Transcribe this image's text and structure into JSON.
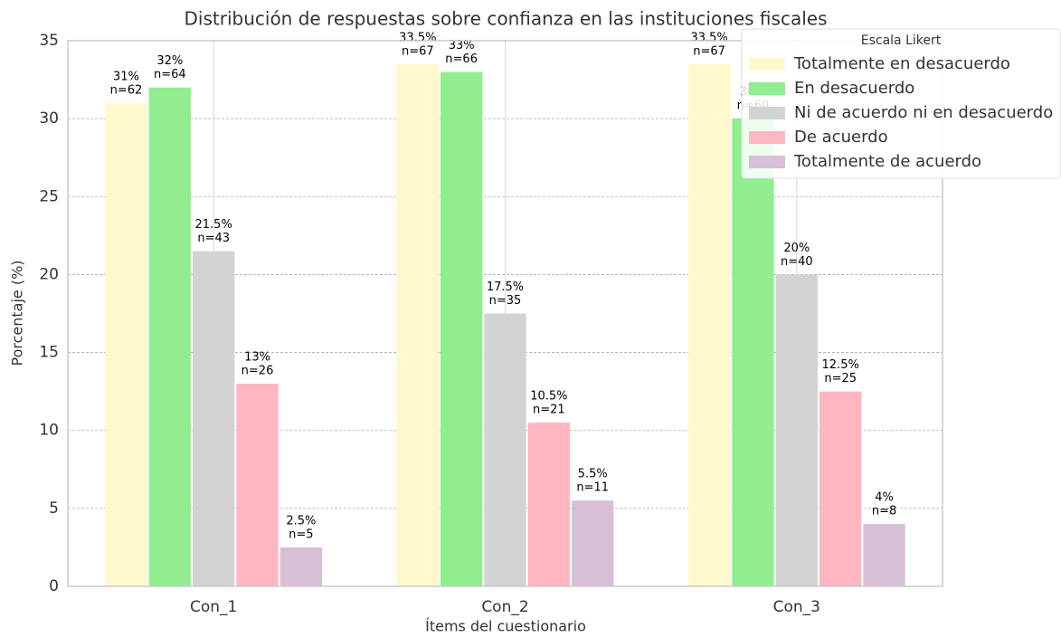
{
  "chart_data": {
    "type": "bar",
    "title": "Distribución de respuestas sobre confianza en las instituciones fiscales",
    "xlabel": "Ítems del cuestionario",
    "ylabel": "Porcentaje (%)",
    "categories": [
      "Con_1",
      "Con_2",
      "Con_3"
    ],
    "ylim": [
      0,
      35
    ],
    "yticks": [
      0,
      5,
      10,
      15,
      20,
      25,
      30,
      35
    ],
    "grid": true,
    "legend": {
      "title": "Escala Likert",
      "position": "upper right"
    },
    "series": [
      {
        "name": "Totalmente en desacuerdo",
        "color": "#fff8cc",
        "values": [
          31,
          33.5,
          33.5
        ],
        "value_labels": [
          "31%",
          "33.5%",
          "33.5%"
        ],
        "count_labels": [
          "n=62",
          "n=67",
          "n=67"
        ]
      },
      {
        "name": "En desacuerdo",
        "color": "#90ee90",
        "values": [
          32,
          33,
          30
        ],
        "value_labels": [
          "32%",
          "33%",
          "30%"
        ],
        "count_labels": [
          "n=64",
          "n=66",
          "n=60"
        ]
      },
      {
        "name": "Ni de acuerdo ni en desacuerdo",
        "color": "#d3d3d3",
        "values": [
          21.5,
          17.5,
          20
        ],
        "value_labels": [
          "21.5%",
          "17.5%",
          "20%"
        ],
        "count_labels": [
          "n=43",
          "n=35",
          "n=40"
        ]
      },
      {
        "name": "De acuerdo",
        "color": "#ffb6c1",
        "values": [
          13,
          10.5,
          12.5
        ],
        "value_labels": [
          "13%",
          "10.5%",
          "12.5%"
        ],
        "count_labels": [
          "n=26",
          "n=21",
          "n=25"
        ]
      },
      {
        "name": "Totalmente de acuerdo",
        "color": "#d8bfd8",
        "values": [
          2.5,
          5.5,
          4
        ],
        "value_labels": [
          "2.5%",
          "5.5%",
          "4%"
        ],
        "count_labels": [
          "n=5",
          "n=11",
          "n=8"
        ]
      }
    ]
  }
}
